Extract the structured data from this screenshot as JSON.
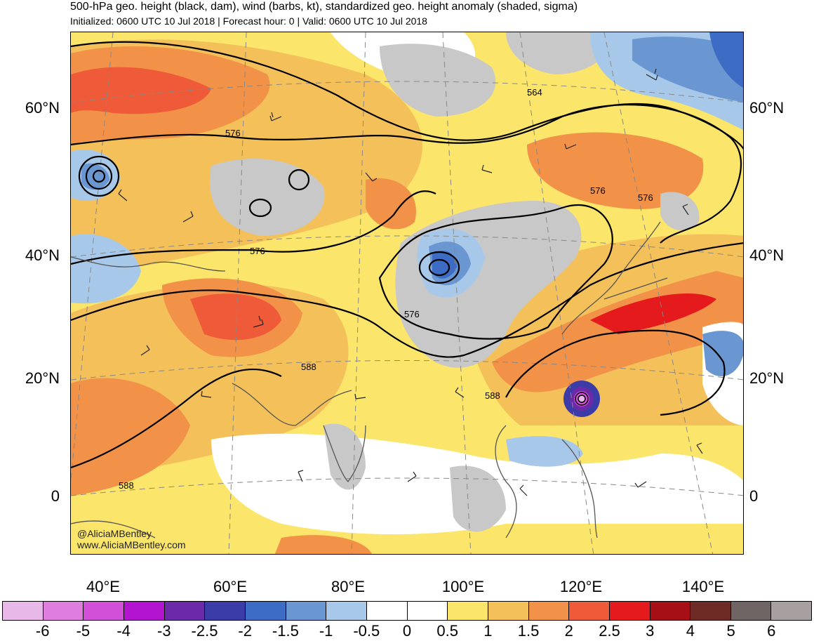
{
  "header": {
    "title": "500-hPa geo. height (black, dam), wind (barbs, kt), standardized geo. height anomaly (shaded, sigma)",
    "subtitle": "Initialized: 0600 UTC 10 Jul 2018 | Forecast hour: 0 | Valid: 0600 UTC 10 Jul 2018"
  },
  "map": {
    "lat_labels_left": [
      "60°N",
      "40°N",
      "20°N",
      "0"
    ],
    "lat_labels_right": [
      "60°N",
      "40°N",
      "20°N",
      "0"
    ],
    "lon_labels": [
      "40°E",
      "60°E",
      "80°E",
      "100°E",
      "120°E",
      "140°E"
    ],
    "contour_labels": [
      "564",
      "576",
      "576",
      "576",
      "576",
      "576",
      "588",
      "588",
      "588"
    ],
    "credit_handle": "@AliciaMBentley",
    "credit_site": "www.AliciaMBentley.com",
    "colors": {
      "background": "#ffffff",
      "land_gray": "#c8c8c8",
      "coast": "#555555",
      "contour": "#000000"
    }
  },
  "colorbar": {
    "labels": [
      "-6",
      "-5",
      "-4",
      "-3",
      "-2.5",
      "-2",
      "-1.5",
      "-1",
      "-0.5",
      "0",
      "0.5",
      "1",
      "1.5",
      "2",
      "2.5",
      "3",
      "4",
      "5",
      "6"
    ],
    "colors": [
      "#e8b8e8",
      "#e07ee0",
      "#d24fd8",
      "#b314d0",
      "#6b2aa8",
      "#3c3ca8",
      "#3d6cc4",
      "#6a96d2",
      "#a8c8ea",
      "#ffffff",
      "#ffffff",
      "#fbe56a",
      "#f4c05a",
      "#f29148",
      "#ef5a38",
      "#e41a1c",
      "#a50f15",
      "#6e2a25",
      "#706565",
      "#a8a0a0"
    ]
  }
}
